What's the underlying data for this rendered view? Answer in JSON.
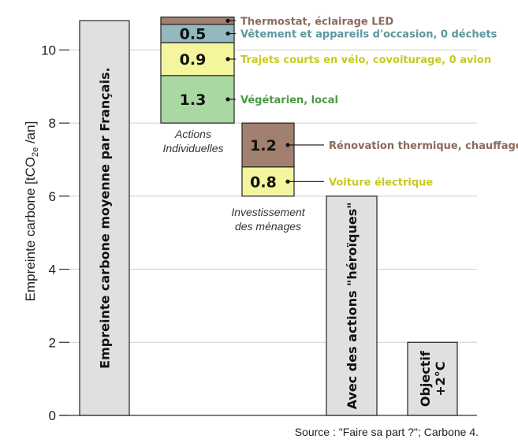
{
  "chart_data": {
    "type": "bar",
    "style": "waterfall",
    "ylabel": "Empreinte carbone [tCO2e /an]",
    "ylabel_parts": [
      "Empreinte carbone [tCO",
      "2e",
      " /an]"
    ],
    "ylim": [
      0,
      11
    ],
    "yticks": [
      0,
      2,
      4,
      6,
      8,
      10
    ],
    "grid": true,
    "source": "Source : \"Faire sa part ?\"; Carbone 4.",
    "bars": [
      {
        "label": "Empreinte carbone moyenne par Français.",
        "value": 10.8,
        "color": "#e0e0e0"
      },
      {
        "label": "Avec des actions \"héroïques\"",
        "value": 6.0,
        "color": "#e0e0e0"
      },
      {
        "label": "Objectif +2°C",
        "label_lines": [
          "Objectif",
          "+2°C"
        ],
        "value": 2.0,
        "color": "#e0e0e0"
      }
    ],
    "groups": [
      {
        "label_lines": [
          "Actions",
          "Individuelles"
        ],
        "base": 8.0,
        "segments": [
          {
            "value": 1.3,
            "label": "1.3",
            "annotation": "Végétarien, local",
            "color": "#a9d8a3",
            "text_color": "#4a9a44"
          },
          {
            "value": 0.9,
            "label": "0.9",
            "annotation": "Trajets courts en vélo, covoiturage, 0 avion",
            "color": "#f4f59c",
            "text_color": "#c9c921"
          },
          {
            "value": 0.5,
            "label": "0.5",
            "annotation": "Vêtement et appareils d'occasion, 0 déchets",
            "color": "#93b8bd",
            "text_color": "#5f979e"
          },
          {
            "value": 0.2,
            "label": "",
            "annotation": "Thermostat, éclairage LED",
            "color": "#a2806f",
            "text_color": "#8b6a5a"
          }
        ]
      },
      {
        "label_lines": [
          "Investissement",
          "des ménages"
        ],
        "base": 6.0,
        "segments": [
          {
            "value": 0.8,
            "label": "0.8",
            "annotation": "Voiture électrique",
            "color": "#f4f59c",
            "text_color": "#c9c921"
          },
          {
            "value": 1.2,
            "label": "1.2",
            "annotation": "Rénovation thermique, chauffage",
            "color": "#a2806f",
            "text_color": "#8b6a5a"
          }
        ]
      }
    ]
  }
}
